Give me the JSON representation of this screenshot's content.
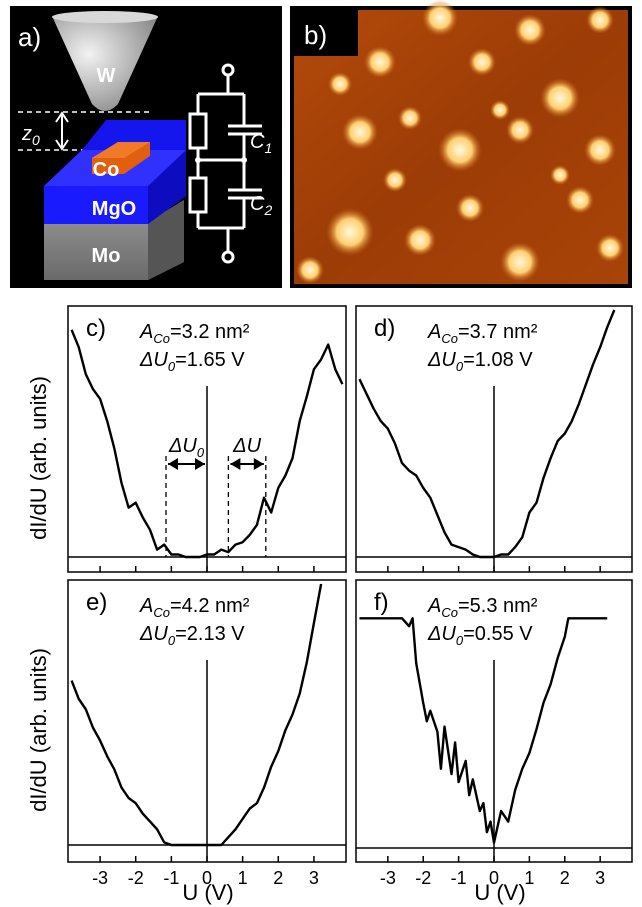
{
  "panel_a": {
    "label": "a)",
    "tip": "W",
    "z0": "z",
    "z0_sub": "0",
    "co": "Co",
    "mgo": "MgO",
    "mo": "Mo",
    "c1": "C",
    "c1_sub": "1",
    "c2": "C",
    "c2_sub": "2"
  },
  "panel_b": {
    "label": "b)"
  },
  "axes_text": {
    "ylabel": "dI/dU (arb. units)",
    "xlabel": "U (V)"
  },
  "colors": {
    "tip": "#bdbdbd",
    "mgo": "#1a1aff",
    "mo": "#8c8c8c",
    "co": "#e06010",
    "stm_dark": "#7a2a00",
    "stm_light": "#ffeec0"
  },
  "chart_data": [
    {
      "type": "line",
      "label": "c)",
      "a_label": "A",
      "a_sub": "Co",
      "a_value": "=3.2 nm²",
      "du_label": "ΔU",
      "du_sub": "0",
      "du_value": "=1.65 V",
      "annotations": {
        "du0": "ΔU",
        "du0_sub": "0",
        "du": "ΔU"
      },
      "xlim": [
        -3.9,
        3.9
      ],
      "x": [
        -3.8,
        -3.6,
        -3.4,
        -3.2,
        -3.0,
        -2.8,
        -2.6,
        -2.4,
        -2.2,
        -2.0,
        -1.8,
        -1.6,
        -1.4,
        -1.2,
        -1.0,
        -0.8,
        -0.6,
        -0.4,
        -0.2,
        0.0,
        0.2,
        0.4,
        0.6,
        0.8,
        1.0,
        1.2,
        1.4,
        1.6,
        1.8,
        2.0,
        2.2,
        2.4,
        2.6,
        2.8,
        3.0,
        3.2,
        3.4,
        3.6,
        3.8
      ],
      "y": [
        0.92,
        0.85,
        0.74,
        0.68,
        0.64,
        0.55,
        0.44,
        0.3,
        0.2,
        0.22,
        0.16,
        0.11,
        0.03,
        0.05,
        0.01,
        0.01,
        0.0,
        0.0,
        0.0,
        0.01,
        0.01,
        0.03,
        0.02,
        0.05,
        0.06,
        0.09,
        0.13,
        0.24,
        0.18,
        0.28,
        0.33,
        0.4,
        0.55,
        0.65,
        0.76,
        0.8,
        0.86,
        0.76,
        0.7
      ]
    },
    {
      "type": "line",
      "label": "d)",
      "a_label": "A",
      "a_sub": "Co",
      "a_value": "=3.7 nm²",
      "du_label": "ΔU",
      "du_sub": "0",
      "du_value": "=1.08 V",
      "xlim": [
        -3.9,
        3.9
      ],
      "x": [
        -3.8,
        -3.6,
        -3.4,
        -3.2,
        -3.0,
        -2.8,
        -2.6,
        -2.4,
        -2.2,
        -2.0,
        -1.8,
        -1.6,
        -1.4,
        -1.2,
        -1.0,
        -0.8,
        -0.6,
        -0.4,
        -0.2,
        0.0,
        0.2,
        0.4,
        0.6,
        0.8,
        1.0,
        1.2,
        1.4,
        1.6,
        1.8,
        2.0,
        2.2,
        2.4,
        2.6,
        2.8,
        3.0,
        3.2,
        3.4
      ],
      "y": [
        0.72,
        0.66,
        0.6,
        0.55,
        0.52,
        0.46,
        0.38,
        0.35,
        0.33,
        0.28,
        0.24,
        0.17,
        0.1,
        0.05,
        0.04,
        0.03,
        0.01,
        0.0,
        0.0,
        0.0,
        0.01,
        0.01,
        0.04,
        0.08,
        0.18,
        0.22,
        0.32,
        0.4,
        0.47,
        0.5,
        0.55,
        0.62,
        0.7,
        0.78,
        0.85,
        0.93,
        1.0
      ]
    },
    {
      "type": "line",
      "label": "e)",
      "a_label": "A",
      "a_sub": "Co",
      "a_value": "=4.2 nm²",
      "du_label": "ΔU",
      "du_sub": "0",
      "du_value": "=2.13 V",
      "xlim": [
        -3.9,
        3.9
      ],
      "x": [
        -3.8,
        -3.6,
        -3.4,
        -3.2,
        -3.0,
        -2.8,
        -2.6,
        -2.4,
        -2.2,
        -2.0,
        -1.8,
        -1.6,
        -1.4,
        -1.2,
        -1.0,
        -0.8,
        -0.6,
        -0.4,
        -0.2,
        0.0,
        0.2,
        0.4,
        0.6,
        0.8,
        1.0,
        1.2,
        1.4,
        1.6,
        1.8,
        2.0,
        2.2,
        2.4,
        2.6,
        2.8,
        3.0,
        3.2
      ],
      "y": [
        0.63,
        0.56,
        0.52,
        0.45,
        0.4,
        0.34,
        0.29,
        0.22,
        0.18,
        0.16,
        0.12,
        0.09,
        0.06,
        0.01,
        0.0,
        0.0,
        0.0,
        0.0,
        0.0,
        0.0,
        0.0,
        0.0,
        0.03,
        0.06,
        0.1,
        0.14,
        0.16,
        0.22,
        0.3,
        0.36,
        0.44,
        0.5,
        0.58,
        0.7,
        0.85,
        1.0
      ]
    },
    {
      "type": "line",
      "label": "f)",
      "a_label": "A",
      "a_sub": "Co",
      "a_value": "=5.3 nm²",
      "du_label": "ΔU",
      "du_sub": "0",
      "du_value": "=0.55 V",
      "xlim": [
        -3.9,
        3.9
      ],
      "x": [
        -3.8,
        -3.2,
        -2.6,
        -2.4,
        -2.3,
        -2.2,
        -2.0,
        -1.9,
        -1.8,
        -1.6,
        -1.5,
        -1.4,
        -1.2,
        -1.1,
        -1.0,
        -0.8,
        -0.7,
        -0.6,
        -0.4,
        -0.3,
        -0.2,
        -0.1,
        0.0,
        0.1,
        0.2,
        0.4,
        0.6,
        0.8,
        1.0,
        1.2,
        1.4,
        1.6,
        1.8,
        2.0,
        2.1,
        2.2,
        2.6,
        3.2
      ],
      "y": [
        0.87,
        0.87,
        0.87,
        0.84,
        0.87,
        0.7,
        0.55,
        0.48,
        0.52,
        0.44,
        0.3,
        0.46,
        0.28,
        0.4,
        0.25,
        0.33,
        0.2,
        0.26,
        0.14,
        0.17,
        0.06,
        0.1,
        0.02,
        0.08,
        0.14,
        0.1,
        0.22,
        0.3,
        0.36,
        0.45,
        0.55,
        0.62,
        0.72,
        0.8,
        0.87,
        0.87,
        0.87,
        0.87
      ]
    }
  ],
  "xticks": [
    "-3",
    "-2",
    "-1",
    "0",
    "1",
    "2",
    "3"
  ]
}
